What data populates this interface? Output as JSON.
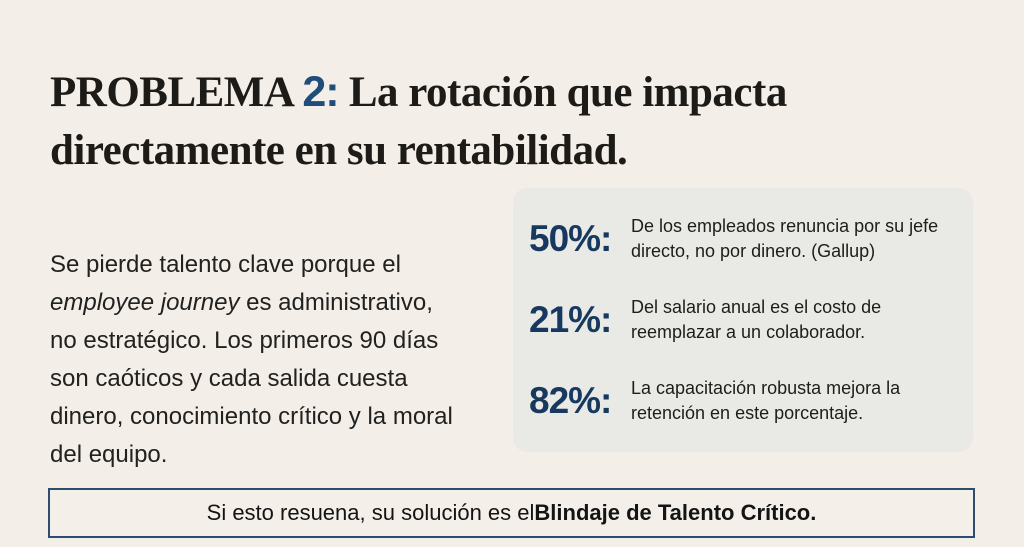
{
  "colors": {
    "page_background": "#f3efe8",
    "title_text": "#1c1b18",
    "title_number_navy": "#204d7a",
    "stat_number_navy": "#17385f",
    "card_background": "#e9eae6",
    "banner_border_navy": "#2c4d6e",
    "body_text": "#212120"
  },
  "title": {
    "prefix": "PROBLEMA ",
    "number": "2:",
    "rest_line1": " La rotación que impacta",
    "line2": "directamente en su rentabilidad."
  },
  "body": {
    "text_before_italic": "Se pierde talento clave porque el ",
    "italic": "employee journey",
    "text_after_italic": " es administrativo, no estratégico. Los primeros 90 días son caóticos y cada salida cuesta dinero, conocimiento crítico y la moral del equipo."
  },
  "stats": {
    "items": [
      {
        "value": "50%:",
        "description": "De los empleados renuncia por su jefe directo, no por dinero. (Gallup)"
      },
      {
        "value": "21%:",
        "description": "Del salario anual es el costo de reemplazar a un colaborador."
      },
      {
        "value": "82%:",
        "description": "La capacitación robusta mejora la retención en este porcentaje."
      }
    ]
  },
  "banner": {
    "text_regular": "Si esto resuena, su solución es el ",
    "text_bold": "Blindaje de Talento Crítico."
  }
}
